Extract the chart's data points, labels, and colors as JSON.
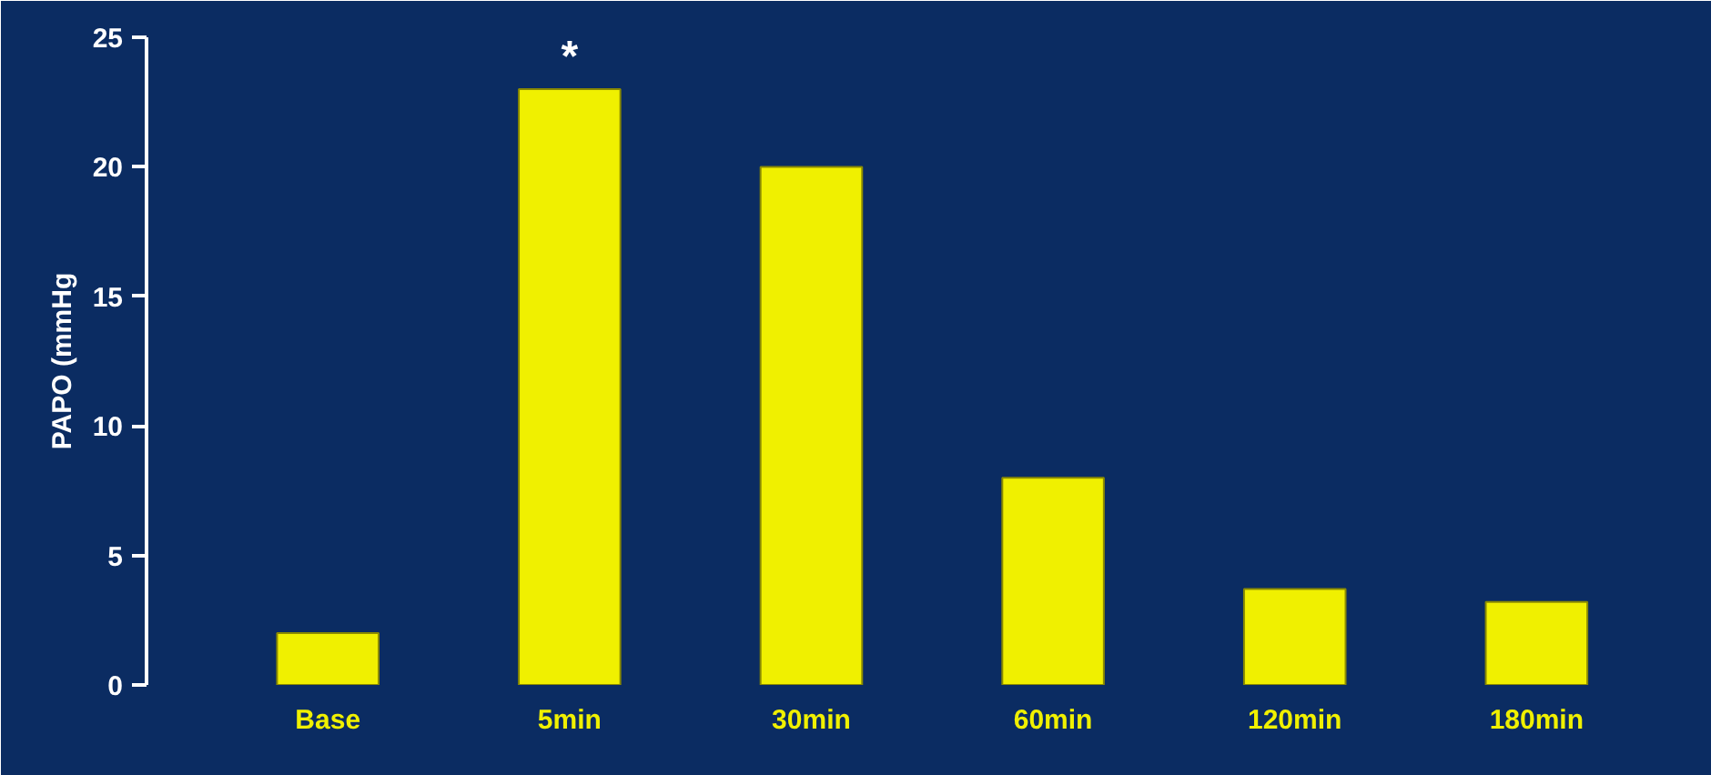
{
  "chart_data": {
    "type": "bar",
    "ylabel": "PAPO (mmHg",
    "categories": [
      "Base",
      "5min",
      "30min",
      "60min",
      "120min",
      "180min"
    ],
    "values": [
      2,
      23,
      20,
      8,
      3.7,
      3.2
    ],
    "color": "#f0f000",
    "ylim": [
      0,
      25
    ],
    "yticks": [
      0,
      5,
      10,
      15,
      20,
      25
    ],
    "grid": false,
    "annotations": [
      {
        "text": "*",
        "x": "5min",
        "y": 23
      }
    ]
  }
}
